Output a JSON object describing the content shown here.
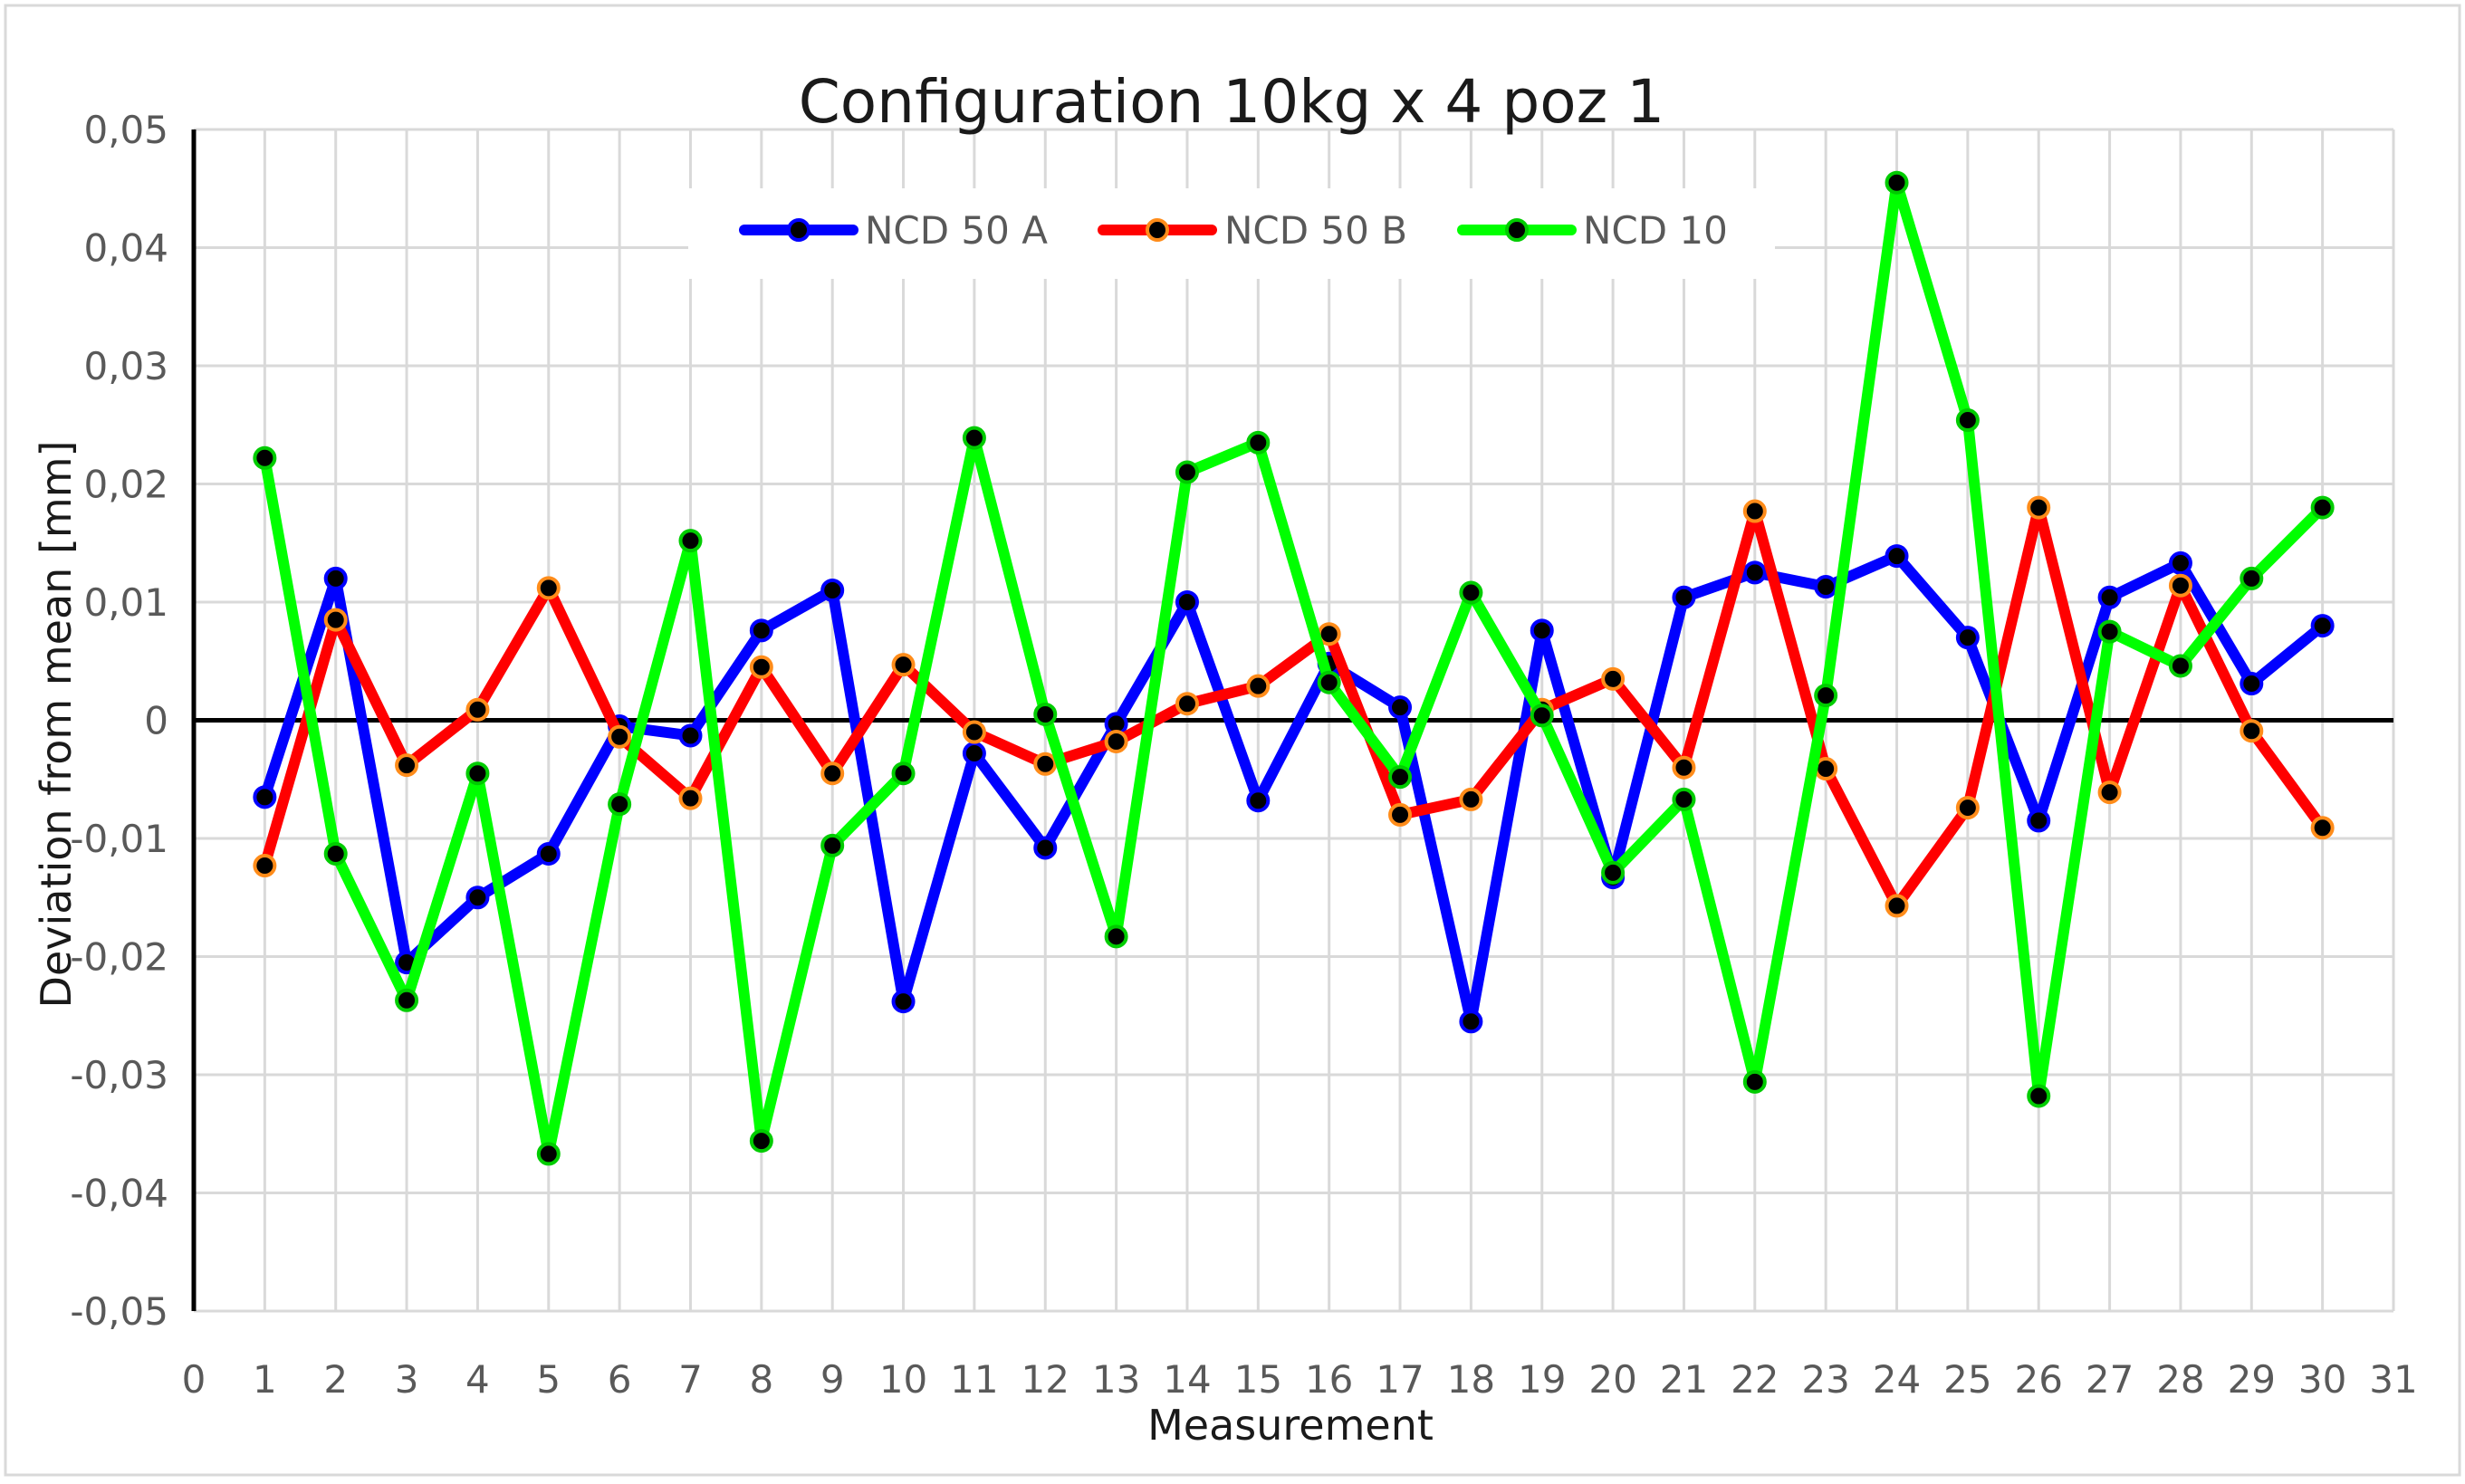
{
  "chart_data": {
    "type": "line",
    "title": "Configuration 10kg x 4 poz 1",
    "xlabel": "Measurement",
    "ylabel": "Deviation from mean [mm]",
    "xlim": [
      0,
      31
    ],
    "ylim": [
      -0.05,
      0.05
    ],
    "x_ticks": [
      0,
      1,
      2,
      3,
      4,
      5,
      6,
      7,
      8,
      9,
      10,
      11,
      12,
      13,
      14,
      15,
      16,
      17,
      18,
      19,
      20,
      21,
      22,
      23,
      24,
      25,
      26,
      27,
      28,
      29,
      30,
      31
    ],
    "y_ticks": [
      0.05,
      0.04,
      0.03,
      0.02,
      0.01,
      0,
      -0.01,
      -0.02,
      -0.03,
      -0.04,
      -0.05
    ],
    "y_tick_labels": [
      "0,05",
      "0,04",
      "0,03",
      "0,02",
      "0,01",
      "0",
      "-0,01",
      "-0,02",
      "-0,03",
      "-0,04",
      "-0,05"
    ],
    "grid": true,
    "legend_position": "top-center",
    "x": [
      1,
      2,
      3,
      4,
      5,
      6,
      7,
      8,
      9,
      10,
      11,
      12,
      13,
      14,
      15,
      16,
      17,
      18,
      19,
      20,
      21,
      22,
      23,
      24,
      25,
      26,
      27,
      28,
      29,
      30
    ],
    "series": [
      {
        "name": "NCD 50 A",
        "color": "#0000ff",
        "marker_edge": "#0000ff",
        "values": [
          -0.0065,
          0.012,
          -0.0205,
          -0.015,
          -0.0113,
          -0.0005,
          -0.0013,
          0.0076,
          0.011,
          -0.0238,
          -0.0028,
          -0.0108,
          -0.0003,
          0.01,
          -0.0068,
          0.0048,
          0.0011,
          -0.0255,
          0.0076,
          -0.0133,
          0.0104,
          0.0125,
          0.0113,
          0.0139,
          0.007,
          -0.0085,
          0.0104,
          0.0133,
          0.0031,
          0.008
        ]
      },
      {
        "name": "NCD 50 B",
        "color": "#ff0000",
        "marker_edge": "#ff8c1a",
        "values": [
          -0.0123,
          0.0085,
          -0.0038,
          0.0009,
          0.0112,
          -0.0014,
          -0.0066,
          0.0045,
          -0.0045,
          0.0047,
          -0.001,
          -0.0037,
          -0.0018,
          0.0014,
          0.0029,
          0.0073,
          -0.008,
          -0.0067,
          0.0009,
          0.0035,
          -0.004,
          0.0177,
          -0.0041,
          -0.0157,
          -0.0074,
          0.018,
          -0.0061,
          0.0114,
          -0.0009,
          -0.0091
        ]
      },
      {
        "name": "NCD 10",
        "color": "#00ff00",
        "marker_edge": "#00cc00",
        "values": [
          0.0222,
          -0.0113,
          -0.0237,
          -0.0045,
          -0.0367,
          -0.0071,
          0.0152,
          -0.0356,
          -0.0106,
          -0.0045,
          0.0239,
          0.0005,
          -0.0183,
          0.021,
          0.0235,
          0.0032,
          -0.0048,
          0.0108,
          0.0004,
          -0.0129,
          -0.0067,
          -0.0306,
          0.0021,
          0.0455,
          0.0254,
          -0.0318,
          0.0075,
          0.0046,
          0.012,
          0.018
        ]
      }
    ]
  },
  "colors": {
    "marker_fill": "#000000",
    "grid": "#d9d9d9",
    "axis": "#000000",
    "frame": "#d9d9d9"
  }
}
